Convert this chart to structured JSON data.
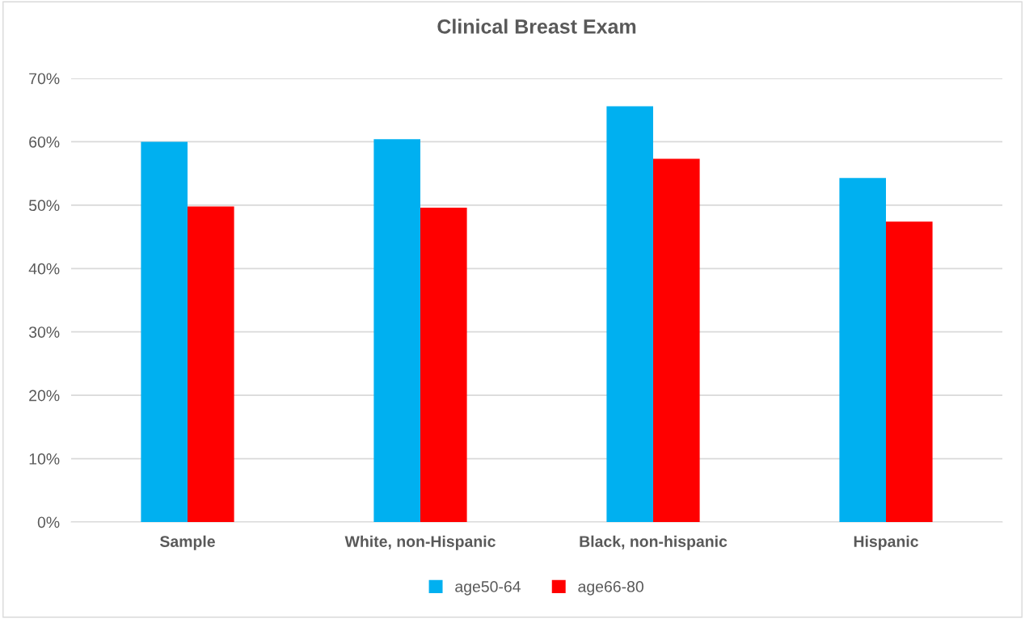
{
  "chart_data": {
    "type": "bar",
    "title": "Clinical Breast Exam",
    "categories": [
      "Sample",
      "White, non-Hispanic",
      "Black, non-hispanic",
      "Hispanic"
    ],
    "series": [
      {
        "name": "age50-64",
        "color": "#00b0f0",
        "values": [
          60.0,
          60.4,
          65.6,
          54.3
        ]
      },
      {
        "name": "age66-80",
        "color": "#ff0000",
        "values": [
          49.8,
          49.6,
          57.3,
          47.4
        ]
      }
    ],
    "ylim": [
      0,
      70
    ],
    "yticks": [
      {
        "value": 0,
        "label": "0%"
      },
      {
        "value": 10,
        "label": "10%"
      },
      {
        "value": 20,
        "label": "20%"
      },
      {
        "value": 30,
        "label": "30%"
      },
      {
        "value": 40,
        "label": "40%"
      },
      {
        "value": 50,
        "label": "50%"
      },
      {
        "value": 60,
        "label": "60%"
      },
      {
        "value": 70,
        "label": "70%"
      }
    ],
    "grid": "y",
    "legend": "bottom"
  }
}
